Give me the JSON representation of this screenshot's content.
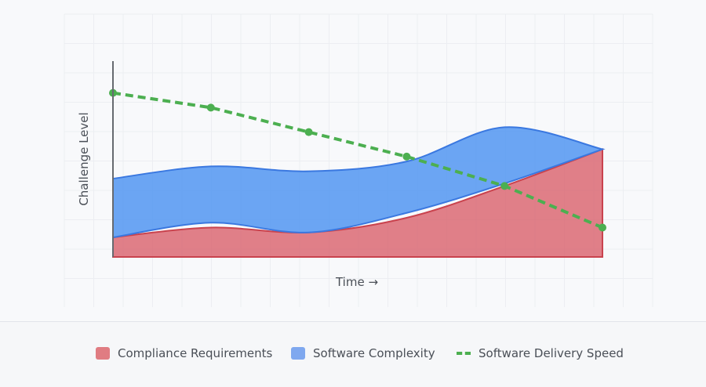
{
  "chart_data": {
    "type": "area",
    "xlabel": "Time →",
    "ylabel": "Challenge Level",
    "grid": true,
    "legend_placement": "bottom",
    "x": [
      0,
      1,
      2,
      3,
      4,
      5
    ],
    "xlim": [
      0,
      5
    ],
    "ylim": [
      0,
      8
    ],
    "series": [
      {
        "name": "Compliance Requirements",
        "type": "area",
        "color": "#d9606b",
        "values": [
          0.8,
          1.2,
          1.0,
          1.6,
          2.9,
          4.4
        ]
      },
      {
        "name": "Software Complexity",
        "type": "range-area",
        "color": "#5b9bf2",
        "lower": [
          0.8,
          1.4,
          1.0,
          1.8,
          3.0,
          4.4
        ],
        "upper": [
          3.2,
          3.7,
          3.5,
          3.9,
          5.3,
          4.4
        ]
      },
      {
        "name": "Software Delivery Speed",
        "type": "line",
        "style": "dashed",
        "color": "#4caf50",
        "values": [
          6.7,
          6.1,
          5.1,
          4.1,
          2.9,
          1.2
        ]
      }
    ]
  },
  "legend": {
    "compliance_label": "Compliance Requirements",
    "complexity_label": "Software Complexity",
    "speed_label": "Software Delivery Speed"
  }
}
